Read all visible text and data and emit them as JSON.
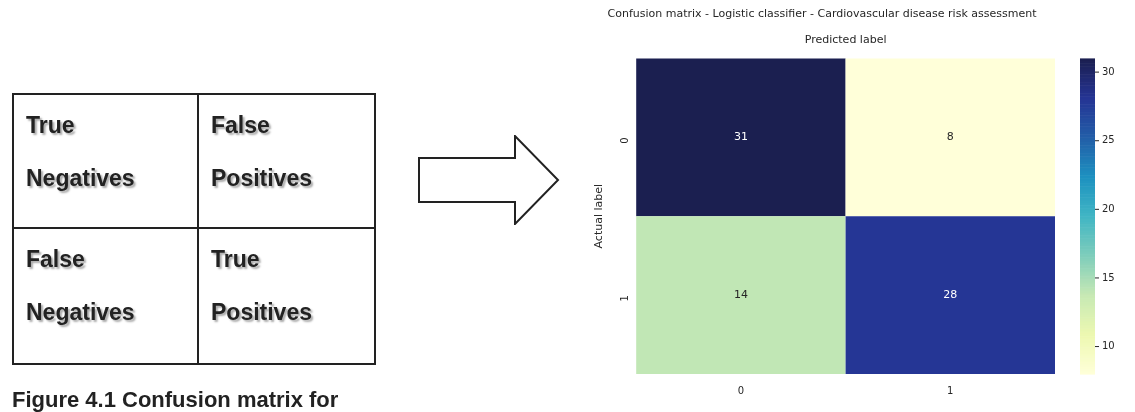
{
  "chart_data": [
    {
      "type": "other",
      "annotations": [
        "True Negatives",
        "False Positives",
        "False Negatives",
        "True Positives",
        "Figure 4.1 Confusion matrix for"
      ]
    },
    {
      "type": "heatmap",
      "title": "Confusion matrix - Logistic classifier - Cardiovascular disease risk assessment",
      "xlabel": "Predicted label",
      "ylabel": "Actual label",
      "categories": [
        "0",
        "1"
      ],
      "y_categories": [
        "0",
        "1"
      ],
      "cells": [
        [
          31,
          8
        ],
        [
          14,
          28
        ]
      ],
      "clim": [
        8,
        31
      ],
      "cticks": [
        10,
        15,
        20,
        25,
        30
      ],
      "data_labels": true
    }
  ]
}
